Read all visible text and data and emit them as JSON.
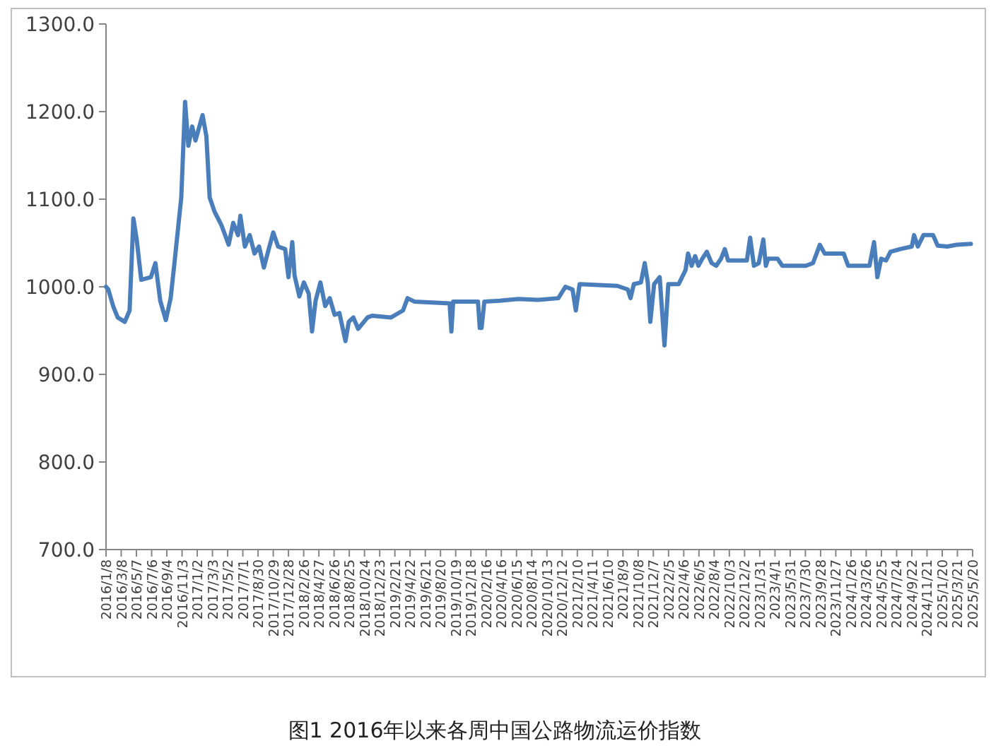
{
  "chart_data": {
    "type": "line",
    "title": "图1 2016年以来各周中国公路物流运价指数",
    "xlim": [
      "2016-01-08",
      "2025-05-20"
    ],
    "ylim": [
      700,
      1300
    ],
    "yticks": [
      {
        "value": 700,
        "label": "700.0"
      },
      {
        "value": 800,
        "label": "800.0"
      },
      {
        "value": 900,
        "label": "900.0"
      },
      {
        "value": 1000,
        "label": "1000.0"
      },
      {
        "value": 1100,
        "label": "1100.0"
      },
      {
        "value": 1200,
        "label": "1200.0"
      },
      {
        "value": 1300,
        "label": "1300.0"
      }
    ],
    "xticks": [
      {
        "value": "2016-01-08",
        "label": "2016/1/8"
      },
      {
        "value": "2016-03-08",
        "label": "2016/3/8"
      },
      {
        "value": "2016-05-07",
        "label": "2016/5/7"
      },
      {
        "value": "2016-07-06",
        "label": "2016/7/6"
      },
      {
        "value": "2016-09-04",
        "label": "2016/9/4"
      },
      {
        "value": "2016-11-03",
        "label": "2016/11/3"
      },
      {
        "value": "2017-01-02",
        "label": "2017/1/2"
      },
      {
        "value": "2017-03-03",
        "label": "2017/3/3"
      },
      {
        "value": "2017-05-02",
        "label": "2017/5/2"
      },
      {
        "value": "2017-07-01",
        "label": "2017/7/1"
      },
      {
        "value": "2017-08-30",
        "label": "2017/8/30"
      },
      {
        "value": "2017-10-29",
        "label": "2017/10/29"
      },
      {
        "value": "2017-12-28",
        "label": "2017/12/28"
      },
      {
        "value": "2018-02-26",
        "label": "2018/2/26"
      },
      {
        "value": "2018-04-27",
        "label": "2018/4/27"
      },
      {
        "value": "2018-06-26",
        "label": "2018/6/26"
      },
      {
        "value": "2018-08-25",
        "label": "2018/8/25"
      },
      {
        "value": "2018-10-24",
        "label": "2018/10/24"
      },
      {
        "value": "2018-12-23",
        "label": "2018/12/23"
      },
      {
        "value": "2019-02-21",
        "label": "2019/2/21"
      },
      {
        "value": "2019-04-22",
        "label": "2019/4/22"
      },
      {
        "value": "2019-06-21",
        "label": "2019/6/21"
      },
      {
        "value": "2019-08-20",
        "label": "2019/8/20"
      },
      {
        "value": "2019-10-19",
        "label": "2019/10/19"
      },
      {
        "value": "2019-12-18",
        "label": "2019/12/18"
      },
      {
        "value": "2020-02-16",
        "label": "2020/2/16"
      },
      {
        "value": "2020-04-16",
        "label": "2020/4/16"
      },
      {
        "value": "2020-06-15",
        "label": "2020/6/15"
      },
      {
        "value": "2020-08-14",
        "label": "2020/8/14"
      },
      {
        "value": "2020-10-13",
        "label": "2020/10/13"
      },
      {
        "value": "2020-12-12",
        "label": "2020/12/12"
      },
      {
        "value": "2021-02-10",
        "label": "2021/2/10"
      },
      {
        "value": "2021-04-11",
        "label": "2021/4/11"
      },
      {
        "value": "2021-06-10",
        "label": "2021/6/10"
      },
      {
        "value": "2021-08-09",
        "label": "2021/8/9"
      },
      {
        "value": "2021-10-08",
        "label": "2021/10/8"
      },
      {
        "value": "2021-12-07",
        "label": "2021/12/7"
      },
      {
        "value": "2022-02-05",
        "label": "2022/2/5"
      },
      {
        "value": "2022-04-06",
        "label": "2022/4/6"
      },
      {
        "value": "2022-06-05",
        "label": "2022/6/5"
      },
      {
        "value": "2022-08-04",
        "label": "2022/8/4"
      },
      {
        "value": "2022-10-03",
        "label": "2022/10/3"
      },
      {
        "value": "2022-12-02",
        "label": "2022/12/2"
      },
      {
        "value": "2023-01-31",
        "label": "2023/1/31"
      },
      {
        "value": "2023-04-01",
        "label": "2023/4/1"
      },
      {
        "value": "2023-05-31",
        "label": "2023/5/31"
      },
      {
        "value": "2023-07-30",
        "label": "2023/7/30"
      },
      {
        "value": "2023-09-28",
        "label": "2023/9/28"
      },
      {
        "value": "2023-11-27",
        "label": "2023/11/27"
      },
      {
        "value": "2024-01-26",
        "label": "2024/1/26"
      },
      {
        "value": "2024-03-26",
        "label": "2024/3/26"
      },
      {
        "value": "2024-05-25",
        "label": "2024/5/25"
      },
      {
        "value": "2024-07-24",
        "label": "2024/7/24"
      },
      {
        "value": "2024-09-22",
        "label": "2024/9/22"
      },
      {
        "value": "2024-11-21",
        "label": "2024/11/21"
      },
      {
        "value": "2025-01-20",
        "label": "2025/1/20"
      },
      {
        "value": "2025-03-21",
        "label": "2025/3/21"
      },
      {
        "value": "2025-05-20",
        "label": "2025/5/20"
      }
    ],
    "x": [
      "2016-01-08",
      "2016-01-17",
      "2016-02-05",
      "2016-02-23",
      "2016-03-22",
      "2016-04-10",
      "2016-04-25",
      "2016-05-08",
      "2016-05-26",
      "2016-07-03",
      "2016-07-21",
      "2016-08-09",
      "2016-08-31",
      "2016-09-19",
      "2016-10-04",
      "2016-10-31",
      "2016-11-15",
      "2016-11-28",
      "2016-12-13",
      "2016-12-26",
      "2017-01-23",
      "2017-02-07",
      "2017-02-20",
      "2017-03-11",
      "2017-04-08",
      "2017-05-06",
      "2017-05-24",
      "2017-06-12",
      "2017-06-21",
      "2017-07-09",
      "2017-07-28",
      "2017-08-16",
      "2017-09-03",
      "2017-09-22",
      "2017-10-11",
      "2017-10-29",
      "2017-11-17",
      "2017-12-15",
      "2017-12-28",
      "2018-01-12",
      "2018-01-21",
      "2018-02-09",
      "2018-02-27",
      "2018-03-18",
      "2018-03-31",
      "2018-04-14",
      "2018-05-03",
      "2018-05-22",
      "2018-06-09",
      "2018-06-28",
      "2018-07-17",
      "2018-08-10",
      "2018-08-23",
      "2018-09-10",
      "2018-09-29",
      "2018-11-05",
      "2018-11-24",
      "2019-02-06",
      "2019-03-25",
      "2019-04-12",
      "2019-05-10",
      "2019-09-25",
      "2019-10-02",
      "2019-10-09",
      "2020-01-15",
      "2020-01-22",
      "2020-01-29",
      "2020-02-09",
      "2020-04-09",
      "2020-06-22",
      "2020-09-06",
      "2020-11-27",
      "2020-12-25",
      "2021-01-22",
      "2021-02-04",
      "2021-02-19",
      "2021-07-18",
      "2021-08-28",
      "2021-09-08",
      "2021-09-21",
      "2021-10-19",
      "2021-11-03",
      "2021-11-15",
      "2021-11-25",
      "2021-12-10",
      "2022-01-01",
      "2022-01-20",
      "2022-02-04",
      "2022-03-17",
      "2022-04-13",
      "2022-04-23",
      "2022-05-07",
      "2022-05-21",
      "2022-06-03",
      "2022-06-18",
      "2022-07-06",
      "2022-07-25",
      "2022-08-12",
      "2022-08-31",
      "2022-09-15",
      "2022-09-28",
      "2022-10-16",
      "2022-12-11",
      "2022-12-24",
      "2023-01-08",
      "2023-01-27",
      "2023-02-14",
      "2023-02-24",
      "2023-03-05",
      "2023-04-11",
      "2023-04-30",
      "2023-08-01",
      "2023-08-29",
      "2023-09-25",
      "2023-10-14",
      "2023-12-28",
      "2024-01-15",
      "2024-04-08",
      "2024-04-26",
      "2024-05-09",
      "2024-05-24",
      "2024-06-12",
      "2024-06-30",
      "2024-08-07",
      "2024-09-22",
      "2024-10-01",
      "2024-10-16",
      "2024-11-07",
      "2024-12-15",
      "2025-01-02",
      "2025-02-09",
      "2025-03-18",
      "2025-05-13"
    ],
    "series": [
      {
        "color": "#4a7ebb",
        "values": [
          1000,
          997,
          978,
          965,
          960,
          973,
          1078,
          1054,
          1008,
          1011,
          1027,
          984,
          962,
          987,
          1027,
          1102,
          1211,
          1161,
          1183,
          1167,
          1196,
          1172,
          1102,
          1086,
          1070,
          1048,
          1073,
          1059,
          1081,
          1046,
          1059,
          1038,
          1046,
          1022,
          1043,
          1062,
          1046,
          1043,
          1011,
          1051,
          1013,
          989,
          1005,
          992,
          949,
          984,
          1005,
          978,
          987,
          968,
          970,
          938,
          960,
          965,
          952,
          965,
          967,
          965,
          973,
          987,
          983,
          981,
          949,
          983,
          983,
          953,
          953,
          983,
          984,
          986,
          985,
          987,
          1000,
          997,
          973,
          1003,
          1001,
          997,
          987,
          1003,
          1005,
          1027,
          1005,
          960,
          1003,
          1011,
          933,
          1003,
          1003,
          1019,
          1038,
          1024,
          1035,
          1024,
          1032,
          1040,
          1027,
          1024,
          1032,
          1043,
          1030,
          1030,
          1030,
          1056,
          1024,
          1027,
          1054,
          1024,
          1032,
          1032,
          1024,
          1024,
          1027,
          1048,
          1038,
          1038,
          1024,
          1024,
          1051,
          1011,
          1032,
          1030,
          1040,
          1043,
          1046,
          1059,
          1046,
          1059,
          1059,
          1047,
          1046,
          1048,
          1049
        ]
      }
    ]
  }
}
